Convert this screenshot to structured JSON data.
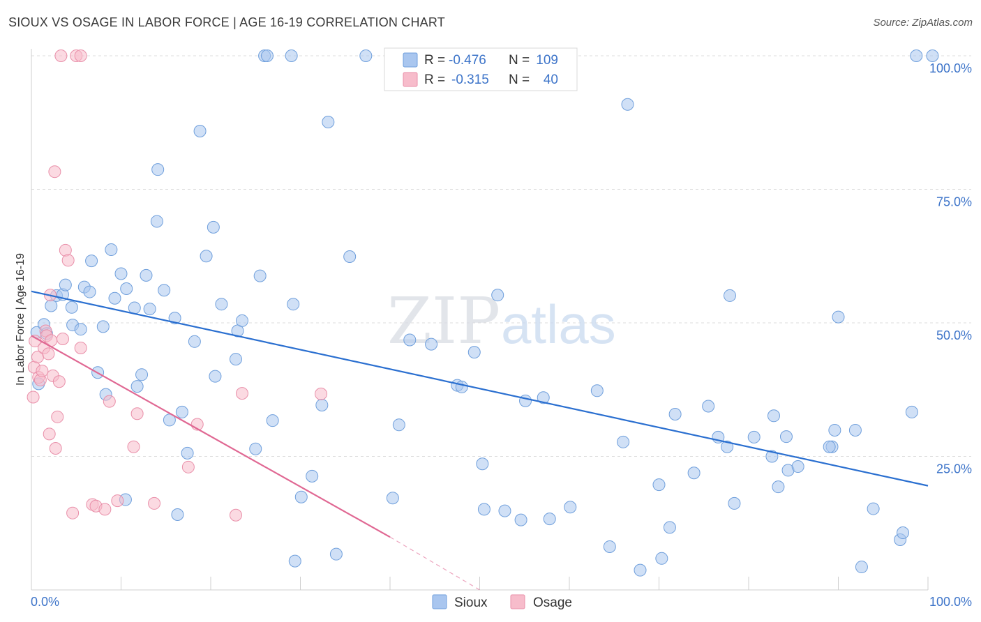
{
  "title": "SIOUX VS OSAGE IN LABOR FORCE | AGE 16-19 CORRELATION CHART",
  "source": "Source: ZipAtlas.com",
  "watermark": {
    "part1": "ZIP",
    "part2": "atlas"
  },
  "colors": {
    "sioux_fill": "#a9c6ef",
    "sioux_stroke": "#6f9fdc",
    "sioux_line": "#2a6fd0",
    "osage_fill": "#f7bccb",
    "osage_stroke": "#e98fa9",
    "osage_line": "#e06893",
    "value_text": "#3d74c9",
    "label_text": "#333333"
  },
  "legend": {
    "rows": [
      {
        "series": "sioux",
        "r_label": "R =",
        "r_value": "-0.476",
        "n_label": "N =",
        "n_value": "109"
      },
      {
        "series": "osage",
        "r_label": "R =",
        "r_value": "-0.315",
        "n_label": "N =",
        "n_value": "40"
      }
    ]
  },
  "chart_data": {
    "type": "scatter",
    "title": "SIOUX VS OSAGE IN LABOR FORCE | AGE 16-19 CORRELATION CHART",
    "xlabel": "",
    "ylabel": "In Labor Force | Age 16-19",
    "xlim": [
      0,
      100
    ],
    "ylim": [
      0,
      100
    ],
    "x_tick_labels": [
      "0.0%",
      "100.0%"
    ],
    "y_tick_labels": [
      {
        "value": 100,
        "label": "100.0%"
      },
      {
        "value": 75,
        "label": "75.0%"
      },
      {
        "value": 50,
        "label": "50.0%"
      },
      {
        "value": 25,
        "label": "25.0%"
      }
    ],
    "grid": true,
    "series": [
      {
        "name": "Sioux",
        "trend": {
          "x": [
            0,
            100
          ],
          "y": [
            55.9,
            19.5
          ]
        },
        "points": [
          [
            0.8,
            38.6
          ],
          [
            0.6,
            48.2
          ],
          [
            1.4,
            49.7
          ],
          [
            1.7,
            48.0
          ],
          [
            2.2,
            53.2
          ],
          [
            2.8,
            55.1
          ],
          [
            3.5,
            55.3
          ],
          [
            3.8,
            57.1
          ],
          [
            4.5,
            52.9
          ],
          [
            4.6,
            49.6
          ],
          [
            5.5,
            48.8
          ],
          [
            5.9,
            56.7
          ],
          [
            6.5,
            55.8
          ],
          [
            6.7,
            61.6
          ],
          [
            7.4,
            40.7
          ],
          [
            8.0,
            49.3
          ],
          [
            8.3,
            36.6
          ],
          [
            8.9,
            63.7
          ],
          [
            9.3,
            54.6
          ],
          [
            10.0,
            59.2
          ],
          [
            10.6,
            56.4
          ],
          [
            10.5,
            16.9
          ],
          [
            11.5,
            52.8
          ],
          [
            11.8,
            38.1
          ],
          [
            12.3,
            40.3
          ],
          [
            12.8,
            58.9
          ],
          [
            13.2,
            52.6
          ],
          [
            14.1,
            78.7
          ],
          [
            14.0,
            69.0
          ],
          [
            14.8,
            56.1
          ],
          [
            15.4,
            31.8
          ],
          [
            16.0,
            50.9
          ],
          [
            16.3,
            14.1
          ],
          [
            16.8,
            33.3
          ],
          [
            17.4,
            25.6
          ],
          [
            18.2,
            46.5
          ],
          [
            18.8,
            85.9
          ],
          [
            19.5,
            62.5
          ],
          [
            20.3,
            67.9
          ],
          [
            20.5,
            40.0
          ],
          [
            21.2,
            53.5
          ],
          [
            22.8,
            43.2
          ],
          [
            23.0,
            48.5
          ],
          [
            23.5,
            50.4
          ],
          [
            25.0,
            26.4
          ],
          [
            25.5,
            58.8
          ],
          [
            26.0,
            100
          ],
          [
            26.3,
            100
          ],
          [
            26.9,
            31.7
          ],
          [
            29.0,
            100
          ],
          [
            29.2,
            53.5
          ],
          [
            29.4,
            5.4
          ],
          [
            30.1,
            17.4
          ],
          [
            31.3,
            21.3
          ],
          [
            32.4,
            34.6
          ],
          [
            33.1,
            87.6
          ],
          [
            34.0,
            6.7
          ],
          [
            35.5,
            62.4
          ],
          [
            37.3,
            100
          ],
          [
            40.3,
            17.2
          ],
          [
            41.0,
            30.9
          ],
          [
            42.2,
            46.8
          ],
          [
            44.6,
            46.0
          ],
          [
            47.5,
            38.3
          ],
          [
            48.0,
            38.0
          ],
          [
            49.4,
            44.5
          ],
          [
            50.3,
            23.6
          ],
          [
            50.5,
            15.1
          ],
          [
            52.0,
            55.2
          ],
          [
            52.8,
            14.8
          ],
          [
            54.6,
            13.1
          ],
          [
            55.1,
            35.4
          ],
          [
            57.1,
            36.0
          ],
          [
            57.8,
            13.3
          ],
          [
            60.1,
            15.5
          ],
          [
            63.1,
            37.3
          ],
          [
            64.5,
            8.1
          ],
          [
            66.5,
            90.9
          ],
          [
            66.0,
            27.7
          ],
          [
            67.9,
            3.7
          ],
          [
            70.0,
            19.7
          ],
          [
            70.3,
            5.9
          ],
          [
            71.2,
            11.7
          ],
          [
            71.8,
            32.9
          ],
          [
            73.9,
            21.9
          ],
          [
            75.5,
            34.4
          ],
          [
            76.6,
            28.6
          ],
          [
            77.6,
            26.8
          ],
          [
            77.9,
            55.1
          ],
          [
            78.4,
            16.2
          ],
          [
            80.6,
            28.6
          ],
          [
            82.6,
            25.0
          ],
          [
            82.8,
            32.6
          ],
          [
            83.3,
            19.3
          ],
          [
            84.2,
            28.7
          ],
          [
            84.4,
            22.4
          ],
          [
            85.5,
            23.1
          ],
          [
            89.3,
            26.8
          ],
          [
            89.0,
            26.8
          ],
          [
            89.6,
            29.9
          ],
          [
            90.0,
            51.1
          ],
          [
            91.9,
            29.9
          ],
          [
            92.6,
            4.3
          ],
          [
            93.9,
            15.2
          ],
          [
            96.9,
            9.4
          ],
          [
            97.2,
            10.7
          ],
          [
            98.2,
            33.3
          ],
          [
            98.7,
            100
          ],
          [
            100.5,
            100
          ]
        ]
      },
      {
        "name": "Osage",
        "trend": {
          "x": [
            0,
            40
          ],
          "y": [
            47.6,
            9.9
          ]
        },
        "trend_extension": {
          "x": [
            40,
            50
          ],
          "y": [
            9.9,
            0
          ]
        },
        "points": [
          [
            0.2,
            36.1
          ],
          [
            0.3,
            41.7
          ],
          [
            0.4,
            46.6
          ],
          [
            0.7,
            43.6
          ],
          [
            0.8,
            39.8
          ],
          [
            1.0,
            39.3
          ],
          [
            1.2,
            41.0
          ],
          [
            1.4,
            45.3
          ],
          [
            1.6,
            48.5
          ],
          [
            1.7,
            47.6
          ],
          [
            1.9,
            44.2
          ],
          [
            2.0,
            29.2
          ],
          [
            2.1,
            55.2
          ],
          [
            2.2,
            46.7
          ],
          [
            2.4,
            40.1
          ],
          [
            2.6,
            78.3
          ],
          [
            2.7,
            26.5
          ],
          [
            2.9,
            32.4
          ],
          [
            3.1,
            39.0
          ],
          [
            3.3,
            100
          ],
          [
            3.5,
            47.0
          ],
          [
            3.8,
            63.6
          ],
          [
            4.1,
            61.7
          ],
          [
            4.6,
            14.4
          ],
          [
            5.0,
            100
          ],
          [
            5.5,
            100
          ],
          [
            5.5,
            45.3
          ],
          [
            6.8,
            16.0
          ],
          [
            7.2,
            15.7
          ],
          [
            8.2,
            15.1
          ],
          [
            8.7,
            35.3
          ],
          [
            9.6,
            16.7
          ],
          [
            11.4,
            26.8
          ],
          [
            11.8,
            33.0
          ],
          [
            13.7,
            16.2
          ],
          [
            17.5,
            23.0
          ],
          [
            18.5,
            31.0
          ],
          [
            22.8,
            14.0
          ],
          [
            23.5,
            36.8
          ],
          [
            32.3,
            36.7
          ]
        ]
      }
    ]
  }
}
